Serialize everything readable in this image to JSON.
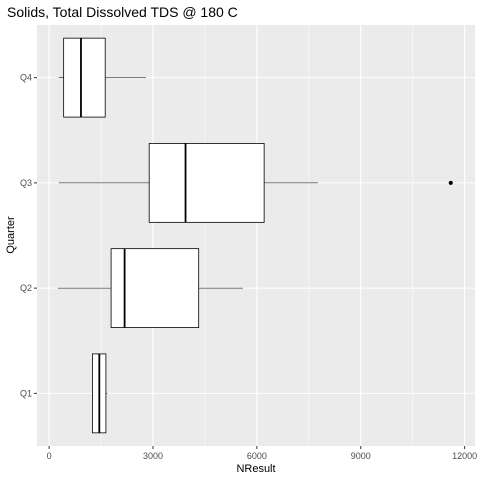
{
  "chart_data": {
    "type": "boxplot",
    "title": "Solids, Total Dissolved TDS @ 180 C",
    "xlabel": "NResult",
    "ylabel": "Quarter",
    "orientation": "horizontal",
    "xlim": [
      -350,
      12300
    ],
    "x_ticks": [
      0,
      3000,
      6000,
      9000,
      12000
    ],
    "categories": [
      "Q1",
      "Q2",
      "Q3",
      "Q4"
    ],
    "boxes": [
      {
        "category": "Q1",
        "whisker_low": 1250,
        "q1": 1250,
        "median": 1450,
        "q3": 1640,
        "whisker_high": 1680,
        "outliers": []
      },
      {
        "category": "Q2",
        "whisker_low": 250,
        "q1": 1790,
        "median": 2180,
        "q3": 4320,
        "whisker_high": 5600,
        "outliers": []
      },
      {
        "category": "Q3",
        "whisker_low": 280,
        "q1": 2890,
        "median": 3940,
        "q3": 6210,
        "whisker_high": 7760,
        "outliers": [
          11600
        ]
      },
      {
        "category": "Q4",
        "whisker_low": 280,
        "q1": 420,
        "median": 920,
        "q3": 1620,
        "whisker_high": 2800,
        "outliers": []
      }
    ],
    "grid": true,
    "colors": {
      "panel": "#ebebeb",
      "grid": "#ffffff",
      "box_fill": "#ffffff",
      "box_stroke": "#000000"
    }
  }
}
